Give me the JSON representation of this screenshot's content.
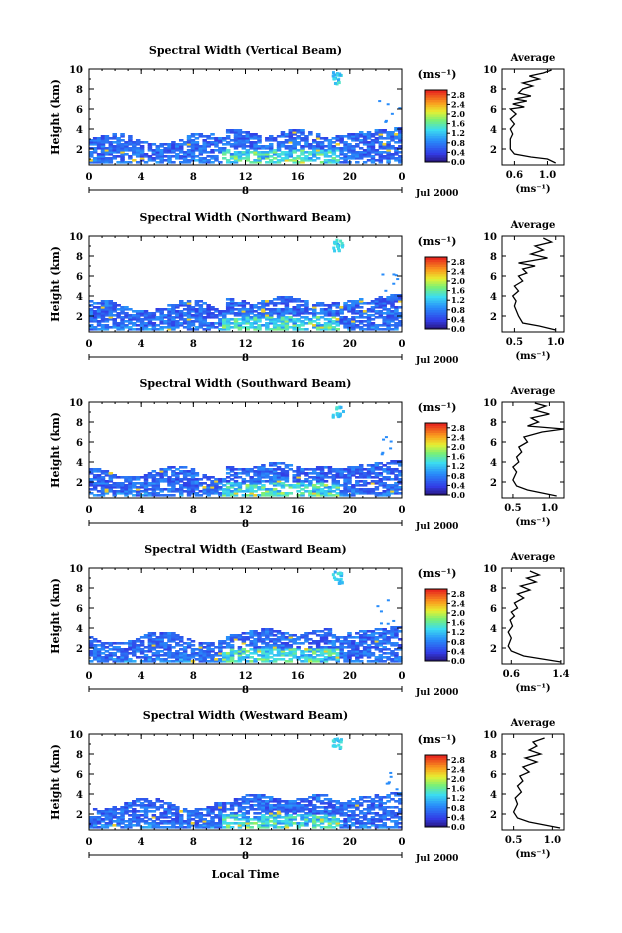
{
  "figure": {
    "xlabel": "Local Time",
    "date_label": "Jul 2000",
    "day_label": "8",
    "ylabel": "Height (km)",
    "units_label": "(ms⁻¹)",
    "avg_title": "Average",
    "avg_xlabel": "(ms⁻¹)"
  },
  "chart_data": [
    {
      "type": "heatmap",
      "title": "Spectral Width (Vertical Beam)",
      "x_ticks": [
        "0",
        "4",
        "8",
        "12",
        "16",
        "20",
        "0"
      ],
      "y_ticks": [
        "2",
        "4",
        "6",
        "8",
        "10"
      ],
      "xlim": [
        0,
        24
      ],
      "ylim": [
        0.4,
        10
      ],
      "colorbar_ticks": [
        "0.0",
        "0.4",
        "0.8",
        "1.2",
        "1.6",
        "2.0",
        "2.4",
        "2.8"
      ],
      "colorbar_range": [
        0,
        3.0
      ],
      "average": {
        "x_ticks": [
          "0.6",
          "1.0"
        ],
        "xlim": [
          0.45,
          1.2
        ],
        "profile": [
          [
            1.1,
            0.6
          ],
          [
            1.0,
            1.0
          ],
          [
            0.8,
            1.2
          ],
          [
            0.6,
            1.5
          ],
          [
            0.55,
            2.0
          ],
          [
            0.55,
            3.0
          ],
          [
            0.58,
            3.5
          ],
          [
            0.55,
            4.0
          ],
          [
            0.6,
            4.5
          ],
          [
            0.55,
            5.0
          ],
          [
            0.62,
            5.5
          ],
          [
            0.55,
            6.0
          ],
          [
            0.72,
            6.2
          ],
          [
            0.58,
            6.5
          ],
          [
            0.75,
            6.8
          ],
          [
            0.6,
            7.0
          ],
          [
            0.8,
            7.3
          ],
          [
            0.65,
            7.6
          ],
          [
            0.7,
            8.0
          ],
          [
            0.82,
            8.3
          ],
          [
            0.7,
            8.6
          ],
          [
            0.9,
            9.0
          ],
          [
            0.78,
            9.3
          ],
          [
            0.95,
            9.6
          ],
          [
            1.05,
            9.9
          ]
        ]
      }
    },
    {
      "type": "heatmap",
      "title": "Spectral Width (Northward Beam)",
      "x_ticks": [
        "0",
        "4",
        "8",
        "12",
        "16",
        "20",
        "0"
      ],
      "y_ticks": [
        "2",
        "4",
        "6",
        "8",
        "10"
      ],
      "xlim": [
        0,
        24
      ],
      "ylim": [
        0.4,
        10
      ],
      "colorbar_ticks": [
        "0.0",
        "0.4",
        "0.8",
        "1.2",
        "1.6",
        "2.0",
        "2.4",
        "2.8"
      ],
      "colorbar_range": [
        0,
        3.0
      ],
      "average": {
        "x_ticks": [
          "0.5",
          "1.0"
        ],
        "xlim": [
          0.35,
          1.1
        ],
        "profile": [
          [
            1.0,
            0.6
          ],
          [
            0.8,
            1.0
          ],
          [
            0.6,
            1.3
          ],
          [
            0.55,
            2.0
          ],
          [
            0.5,
            3.0
          ],
          [
            0.52,
            3.5
          ],
          [
            0.48,
            4.0
          ],
          [
            0.55,
            4.5
          ],
          [
            0.5,
            5.0
          ],
          [
            0.6,
            5.5
          ],
          [
            0.55,
            6.0
          ],
          [
            0.65,
            6.3
          ],
          [
            0.6,
            6.7
          ],
          [
            0.75,
            7.0
          ],
          [
            0.55,
            7.3
          ],
          [
            0.9,
            7.8
          ],
          [
            0.7,
            8.2
          ],
          [
            0.85,
            8.6
          ],
          [
            0.75,
            9.0
          ],
          [
            0.95,
            9.4
          ],
          [
            0.85,
            9.8
          ]
        ]
      }
    },
    {
      "type": "heatmap",
      "title": "Spectral Width (Southward Beam)",
      "x_ticks": [
        "0",
        "4",
        "8",
        "12",
        "16",
        "20",
        "0"
      ],
      "y_ticks": [
        "2",
        "4",
        "6",
        "8",
        "10"
      ],
      "xlim": [
        0,
        24
      ],
      "ylim": [
        0.4,
        10
      ],
      "colorbar_ticks": [
        "0.0",
        "0.4",
        "0.8",
        "1.2",
        "1.6",
        "2.0",
        "2.4",
        "2.8"
      ],
      "colorbar_range": [
        0,
        3.0
      ],
      "average": {
        "x_ticks": [
          "0.5",
          "1.0"
        ],
        "xlim": [
          0.35,
          1.2
        ],
        "profile": [
          [
            1.1,
            0.6
          ],
          [
            0.9,
            0.9
          ],
          [
            0.7,
            1.2
          ],
          [
            0.55,
            1.6
          ],
          [
            0.5,
            2.2
          ],
          [
            0.55,
            3.0
          ],
          [
            0.5,
            3.5
          ],
          [
            0.58,
            4.0
          ],
          [
            0.55,
            4.5
          ],
          [
            0.62,
            5.0
          ],
          [
            0.58,
            5.5
          ],
          [
            0.7,
            6.0
          ],
          [
            0.65,
            6.5
          ],
          [
            0.9,
            7.0
          ],
          [
            1.2,
            7.3
          ],
          [
            0.7,
            7.6
          ],
          [
            0.85,
            8.0
          ],
          [
            0.75,
            8.4
          ],
          [
            1.0,
            8.8
          ],
          [
            0.8,
            9.2
          ],
          [
            0.95,
            9.6
          ],
          [
            0.8,
            9.9
          ]
        ]
      }
    },
    {
      "type": "heatmap",
      "title": "Spectral Width (Eastward Beam)",
      "x_ticks": [
        "0",
        "4",
        "8",
        "12",
        "16",
        "20",
        "0"
      ],
      "y_ticks": [
        "2",
        "4",
        "6",
        "8",
        "10"
      ],
      "xlim": [
        0,
        24
      ],
      "ylim": [
        0.4,
        10
      ],
      "colorbar_ticks": [
        "0.0",
        "0.4",
        "0.8",
        "1.2",
        "1.6",
        "2.0",
        "2.4",
        "2.8"
      ],
      "colorbar_range": [
        0,
        3.0
      ],
      "average": {
        "x_ticks": [
          "0.6",
          "1.4"
        ],
        "xlim": [
          0.45,
          1.45
        ],
        "profile": [
          [
            1.4,
            0.6
          ],
          [
            1.1,
            0.9
          ],
          [
            0.8,
            1.2
          ],
          [
            0.6,
            1.7
          ],
          [
            0.55,
            2.2
          ],
          [
            0.6,
            3.0
          ],
          [
            0.55,
            3.6
          ],
          [
            0.62,
            4.2
          ],
          [
            0.58,
            4.8
          ],
          [
            0.65,
            5.2
          ],
          [
            0.6,
            5.6
          ],
          [
            0.7,
            6.0
          ],
          [
            0.65,
            6.5
          ],
          [
            0.8,
            7.0
          ],
          [
            0.7,
            7.4
          ],
          [
            0.9,
            7.8
          ],
          [
            0.75,
            8.2
          ],
          [
            1.0,
            8.6
          ],
          [
            0.85,
            9.0
          ],
          [
            1.05,
            9.3
          ],
          [
            0.9,
            9.7
          ]
        ]
      }
    },
    {
      "type": "heatmap",
      "title": "Spectral Width (Westward Beam)",
      "x_ticks": [
        "0",
        "4",
        "8",
        "12",
        "16",
        "20",
        "0"
      ],
      "y_ticks": [
        "2",
        "4",
        "6",
        "8",
        "10"
      ],
      "xlim": [
        0,
        24
      ],
      "ylim": [
        0.4,
        10
      ],
      "colorbar_ticks": [
        "0.0",
        "0.4",
        "0.8",
        "1.2",
        "1.6",
        "2.0",
        "2.4",
        "2.8"
      ],
      "colorbar_range": [
        0,
        3.0
      ],
      "average": {
        "x_ticks": [
          "0.5",
          "1.0"
        ],
        "xlim": [
          0.35,
          1.15
        ],
        "profile": [
          [
            1.1,
            0.6
          ],
          [
            0.9,
            0.9
          ],
          [
            0.7,
            1.2
          ],
          [
            0.55,
            1.6
          ],
          [
            0.5,
            2.2
          ],
          [
            0.55,
            3.0
          ],
          [
            0.52,
            3.6
          ],
          [
            0.6,
            4.2
          ],
          [
            0.55,
            4.8
          ],
          [
            0.62,
            5.3
          ],
          [
            0.58,
            5.8
          ],
          [
            0.7,
            6.2
          ],
          [
            0.62,
            6.7
          ],
          [
            0.8,
            7.2
          ],
          [
            0.65,
            7.6
          ],
          [
            0.85,
            8.0
          ],
          [
            0.7,
            8.4
          ],
          [
            0.8,
            8.8
          ],
          [
            0.75,
            9.2
          ],
          [
            0.9,
            9.6
          ]
        ]
      }
    }
  ]
}
